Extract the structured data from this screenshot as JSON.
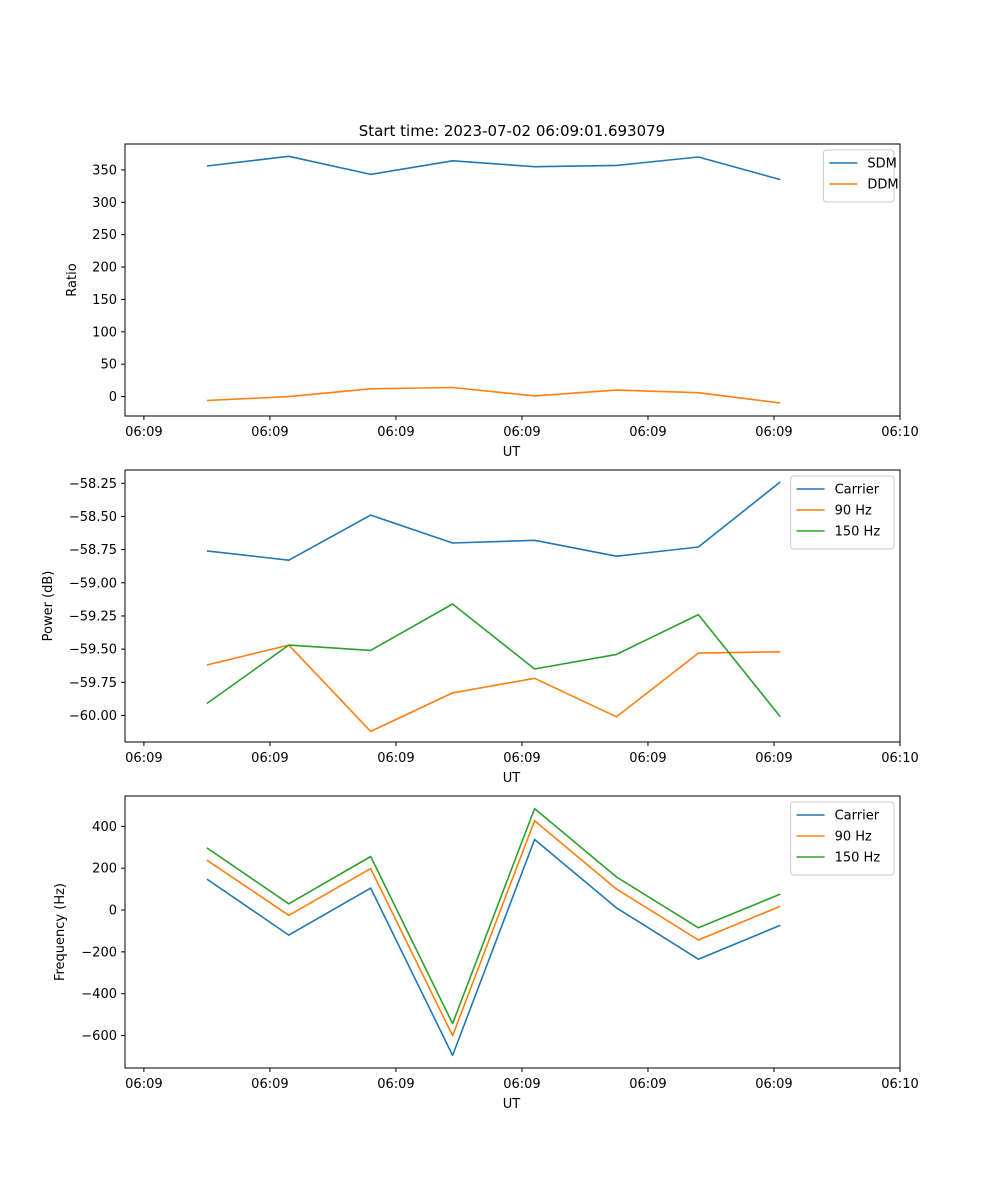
{
  "figure": {
    "title": "Start time: 2023-07-02 06:09:01.693079"
  },
  "colors": {
    "blue": "#1f77b4",
    "orange": "#ff7f0e",
    "green": "#2ca02c"
  },
  "chart_data": [
    {
      "type": "line",
      "id": "ratio",
      "xlabel": "UT",
      "ylabel": "Ratio",
      "x_tick_labels": [
        "06:09",
        "06:09",
        "06:09",
        "06:09",
        "06:09",
        "06:09",
        "06:10"
      ],
      "x_tick_positions": [
        0,
        1,
        2,
        3,
        4,
        5,
        6
      ],
      "xlim": [
        -0.15,
        6.0
      ],
      "x": [
        0.5,
        1.15,
        1.8,
        2.45,
        3.1,
        3.75,
        4.4,
        5.05
      ],
      "ylim": [
        -30,
        390
      ],
      "y_ticks": [
        0,
        50,
        100,
        150,
        200,
        250,
        300,
        350
      ],
      "y_tick_labels": [
        "0",
        "50",
        "100",
        "150",
        "200",
        "250",
        "300",
        "350"
      ],
      "legend": "top-right",
      "series": [
        {
          "name": "SDM",
          "color": "#1f77b4",
          "values": [
            356,
            371,
            343,
            364,
            355,
            357,
            370,
            335
          ]
        },
        {
          "name": "DDM",
          "color": "#ff7f0e",
          "values": [
            -6,
            0,
            12,
            14,
            1,
            10,
            6,
            -10
          ]
        }
      ]
    },
    {
      "type": "line",
      "id": "power",
      "xlabel": "UT",
      "ylabel": "Power (dB)",
      "x_tick_labels": [
        "06:09",
        "06:09",
        "06:09",
        "06:09",
        "06:09",
        "06:09",
        "06:10"
      ],
      "x_tick_positions": [
        0,
        1,
        2,
        3,
        4,
        5,
        6
      ],
      "xlim": [
        -0.15,
        6.0
      ],
      "x": [
        0.5,
        1.15,
        1.8,
        2.45,
        3.1,
        3.75,
        4.4,
        5.05
      ],
      "ylim": [
        -60.2,
        -58.15
      ],
      "y_ticks": [
        -60.0,
        -59.75,
        -59.5,
        -59.25,
        -59.0,
        -58.75,
        -58.5,
        -58.25
      ],
      "y_tick_labels": [
        "−60.00",
        "−59.75",
        "−59.50",
        "−59.25",
        "−59.00",
        "−58.75",
        "−58.50",
        "−58.25"
      ],
      "legend": "top-right",
      "series": [
        {
          "name": "Carrier",
          "color": "#1f77b4",
          "values": [
            -58.76,
            -58.83,
            -58.49,
            -58.7,
            -58.68,
            -58.8,
            -58.73,
            -58.24
          ]
        },
        {
          "name": "90 Hz",
          "color": "#ff7f0e",
          "values": [
            -59.62,
            -59.47,
            -60.12,
            -59.83,
            -59.72,
            -60.01,
            -59.53,
            -59.52
          ]
        },
        {
          "name": "150 Hz",
          "color": "#2ca02c",
          "values": [
            -59.91,
            -59.47,
            -59.51,
            -59.16,
            -59.65,
            -59.54,
            -59.24,
            -60.01
          ]
        }
      ]
    },
    {
      "type": "line",
      "id": "frequency",
      "xlabel": "UT",
      "ylabel": "Frequency (Hz)",
      "x_tick_labels": [
        "06:09",
        "06:09",
        "06:09",
        "06:09",
        "06:09",
        "06:09",
        "06:10"
      ],
      "x_tick_positions": [
        0,
        1,
        2,
        3,
        4,
        5,
        6
      ],
      "xlim": [
        -0.15,
        6.0
      ],
      "x": [
        0.5,
        1.15,
        1.8,
        2.45,
        3.1,
        3.75,
        4.4,
        5.05
      ],
      "ylim": [
        -755,
        545
      ],
      "y_ticks": [
        -600,
        -400,
        -200,
        0,
        200,
        400
      ],
      "y_tick_labels": [
        "−600",
        "−400",
        "−200",
        "0",
        "200",
        "400"
      ],
      "legend": "top-right",
      "series": [
        {
          "name": "Carrier",
          "color": "#1f77b4",
          "values": [
            148,
            -120,
            105,
            -695,
            337,
            10,
            -235,
            -73
          ]
        },
        {
          "name": "90 Hz",
          "color": "#ff7f0e",
          "values": [
            238,
            -25,
            198,
            -600,
            427,
            100,
            -143,
            18
          ]
        },
        {
          "name": "150 Hz",
          "color": "#2ca02c",
          "values": [
            297,
            30,
            256,
            -543,
            485,
            158,
            -85,
            76
          ]
        }
      ]
    }
  ]
}
